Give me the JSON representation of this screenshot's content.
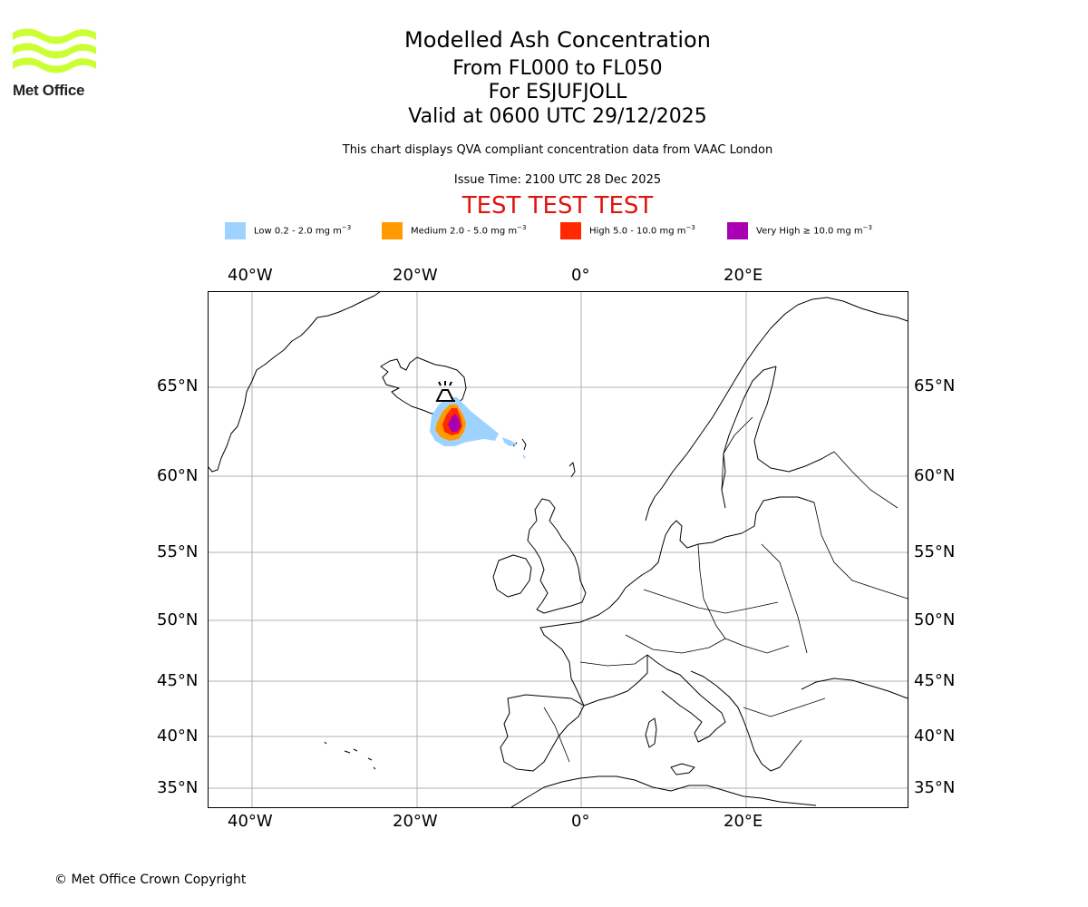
{
  "brand": {
    "logo_text": "Met Office",
    "logo_color": "#ccff33"
  },
  "header": {
    "title": "Modelled Ash Concentration",
    "level_range": "From FL000 to FL050",
    "location": "For ESJUFJOLL",
    "valid_time": "Valid at 0600 UTC 29/12/2025",
    "description": "This chart displays QVA compliant concentration data from VAAC London",
    "issue_time": "Issue Time: 2100 UTC 28 Dec 2025",
    "test_banner": "TEST TEST TEST"
  },
  "legend": [
    {
      "label": "Low 0.2 - 2.0 mg m",
      "exponent": "−3",
      "color": "#9fd3ff"
    },
    {
      "label": "Medium 2.0 - 5.0 mg m",
      "exponent": "−3",
      "color": "#ff9b00"
    },
    {
      "label": "High 5.0 - 10.0 mg m",
      "exponent": "−3",
      "color": "#ff2800"
    },
    {
      "label": "Very High  ≥  10.0 mg m",
      "exponent": "−3",
      "color": "#aa00b4"
    }
  ],
  "map": {
    "longitude_labels": [
      "40°W",
      "20°W",
      "0°",
      "20°E"
    ],
    "latitude_labels": [
      "65°N",
      "60°N",
      "55°N",
      "50°N",
      "45°N",
      "40°N",
      "35°N"
    ],
    "volcano_icon": "volcano-icon"
  },
  "footer": {
    "copyright": "© Met Office Crown Copyright"
  }
}
